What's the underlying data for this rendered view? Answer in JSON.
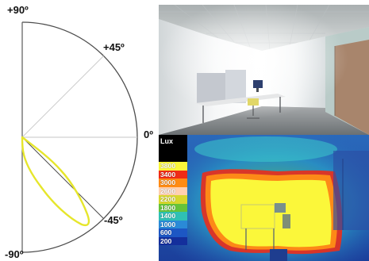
{
  "polar_diagram": {
    "angle_labels": {
      "top": "+90º",
      "plus_45": "+45º",
      "zero": "0º",
      "minus_45": "-45º",
      "bottom": "-90º"
    }
  },
  "legend": {
    "title": "Lux",
    "values": [
      "3800",
      "3400",
      "3000",
      "2600",
      "2200",
      "1800",
      "1400",
      "1000",
      "600",
      "200"
    ],
    "colors": [
      "#fbf73a",
      "#ef2b16",
      "#ff8b14",
      "#ffd0b0",
      "#d7d72e",
      "#64c33a",
      "#2fc0b4",
      "#2a8ad7",
      "#1d57c4",
      "#142f9c"
    ]
  },
  "colors": {
    "polar_curve": "#e6e62b",
    "axes": "#4d4d4d",
    "reference_lines": "#c8c8c8",
    "heatmap_peak": "#fbf73a",
    "heatmap_edge": "#d22822",
    "heatmap_background": "#2a69bb"
  }
}
